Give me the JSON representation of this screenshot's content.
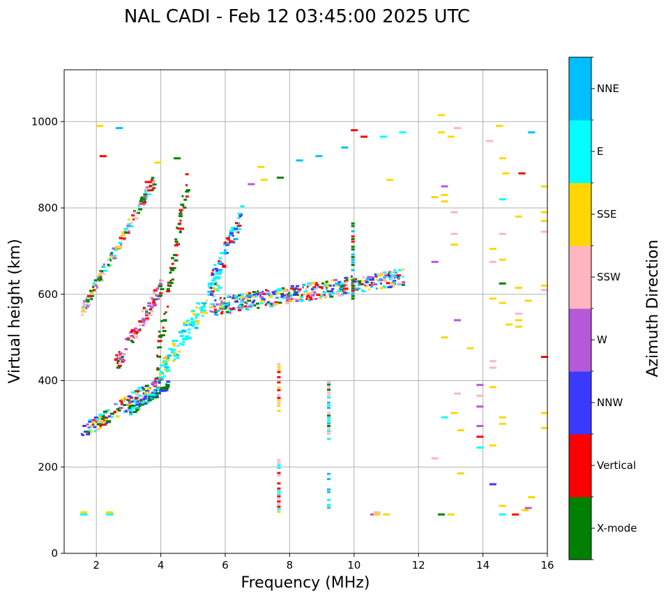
{
  "chart_data": {
    "type": "scatter",
    "title": "NAL CADI - Feb 12 03:45:00 2025 UTC",
    "xlabel": "Frequency (MHz)",
    "ylabel": "Virtual height (km)",
    "xlim": [
      1,
      16
    ],
    "ylim": [
      0,
      1120
    ],
    "xticks": [
      2,
      4,
      6,
      8,
      10,
      12,
      14,
      16
    ],
    "yticks": [
      0,
      200,
      400,
      600,
      800,
      1000
    ],
    "grid": true,
    "colorbar": {
      "label": "Azimuth Direction",
      "position": "right",
      "categories": [
        "X-mode",
        "Vertical",
        "NNW",
        "W",
        "SSW",
        "SSE",
        "E",
        "NNE"
      ],
      "colors": [
        "#008000",
        "#ff0000",
        "#3a3aff",
        "#b45ad6",
        "#ffb6c1",
        "#ffd700",
        "#00ffff",
        "#00bfff"
      ]
    },
    "trace_segments": [
      {
        "name": "low O-trace",
        "f": [
          1.5,
          4.0
        ],
        "h": [
          280,
          400
        ],
        "spread": 35,
        "mix": [
          "Vertical",
          "SSW",
          "NNW",
          "W",
          "X-mode",
          "E",
          "SSE"
        ]
      },
      {
        "name": "X-mode lower",
        "f": [
          3.0,
          4.2
        ],
        "h": [
          330,
          390
        ],
        "spread": 20,
        "mix": [
          "X-mode",
          "NNW",
          "E"
        ]
      },
      {
        "name": "steep trace",
        "f": [
          2.5,
          4.0
        ],
        "h": [
          430,
          620
        ],
        "spread": 40,
        "mix": [
          "Vertical",
          "X-mode",
          "SSW",
          "W"
        ]
      },
      {
        "name": "E-spread cloud",
        "f": [
          3.8,
          5.8
        ],
        "h": [
          400,
          640
        ],
        "spread": 55,
        "mix": [
          "E",
          "E",
          "E",
          "NNE",
          "SSE"
        ]
      },
      {
        "name": "X-mode column",
        "f": [
          3.8,
          4.8
        ],
        "h": [
          430,
          870
        ],
        "spread": 60,
        "mix": [
          "X-mode",
          "X-mode",
          "Vertical"
        ]
      },
      {
        "name": "high trace",
        "f": [
          1.5,
          3.8
        ],
        "h": [
          560,
          870
        ],
        "spread": 30,
        "mix": [
          "Vertical",
          "SSE",
          "E",
          "X-mode",
          "W",
          "SSW"
        ]
      },
      {
        "name": "plateau",
        "f": [
          5.5,
          11.5
        ],
        "h": [
          570,
          640
        ],
        "spread": 40,
        "mix": [
          "NNW",
          "W",
          "E",
          "NNE",
          "Vertical",
          "SSW",
          "SSE",
          "X-mode"
        ]
      },
      {
        "name": "upper cusp",
        "f": [
          5.5,
          6.5
        ],
        "h": [
          620,
          790
        ],
        "spread": 50,
        "mix": [
          "E",
          "NNE",
          "NNW",
          "Vertical"
        ]
      }
    ],
    "scattered_echoes": [
      {
        "f": 2.0,
        "h": 990,
        "az": "SSE"
      },
      {
        "f": 2.1,
        "h": 920,
        "az": "Vertical"
      },
      {
        "f": 2.6,
        "h": 985,
        "az": "NNE"
      },
      {
        "f": 3.5,
        "h": 860,
        "az": "Vertical"
      },
      {
        "f": 3.8,
        "h": 905,
        "az": "SSE"
      },
      {
        "f": 4.4,
        "h": 915,
        "az": "X-mode"
      },
      {
        "f": 6.7,
        "h": 855,
        "az": "W"
      },
      {
        "f": 7.0,
        "h": 895,
        "az": "SSE"
      },
      {
        "f": 7.1,
        "h": 865,
        "az": "SSE"
      },
      {
        "f": 7.6,
        "h": 870,
        "az": "X-mode"
      },
      {
        "f": 8.2,
        "h": 910,
        "az": "NNE"
      },
      {
        "f": 8.8,
        "h": 920,
        "az": "NNE"
      },
      {
        "f": 9.6,
        "h": 940,
        "az": "NNE"
      },
      {
        "f": 9.9,
        "h": 980,
        "az": "Vertical"
      },
      {
        "f": 10.2,
        "h": 965,
        "az": "Vertical"
      },
      {
        "f": 10.8,
        "h": 965,
        "az": "E"
      },
      {
        "f": 11.0,
        "h": 865,
        "az": "SSE"
      },
      {
        "f": 11.4,
        "h": 975,
        "az": "E"
      },
      {
        "f": 12.6,
        "h": 1015,
        "az": "SSE"
      },
      {
        "f": 12.6,
        "h": 975,
        "az": "SSE"
      },
      {
        "f": 12.9,
        "h": 965,
        "az": "SSE"
      },
      {
        "f": 13.1,
        "h": 985,
        "az": "SSW"
      },
      {
        "f": 14.1,
        "h": 955,
        "az": "SSW"
      },
      {
        "f": 14.4,
        "h": 990,
        "az": "SSE"
      },
      {
        "f": 14.5,
        "h": 915,
        "az": "SSE"
      },
      {
        "f": 14.6,
        "h": 880,
        "az": "SSE"
      },
      {
        "f": 15.1,
        "h": 880,
        "az": "Vertical"
      },
      {
        "f": 15.4,
        "h": 975,
        "az": "NNE"
      },
      {
        "f": 15.8,
        "h": 850,
        "az": "SSE"
      },
      {
        "f": 15.8,
        "h": 790,
        "az": "SSE"
      },
      {
        "f": 15.8,
        "h": 770,
        "az": "SSE"
      },
      {
        "f": 15.8,
        "h": 745,
        "az": "SSW"
      },
      {
        "f": 15.8,
        "h": 620,
        "az": "SSE"
      },
      {
        "f": 15.8,
        "h": 610,
        "az": "SSW"
      },
      {
        "f": 15.8,
        "h": 455,
        "az": "Vertical"
      },
      {
        "f": 15.8,
        "h": 325,
        "az": "SSE"
      },
      {
        "f": 15.8,
        "h": 290,
        "az": "SSE"
      },
      {
        "f": 15.3,
        "h": 585,
        "az": "SSE"
      },
      {
        "f": 15.0,
        "h": 780,
        "az": "SSE"
      },
      {
        "f": 15.0,
        "h": 615,
        "az": "SSE"
      },
      {
        "f": 15.0,
        "h": 555,
        "az": "SSW"
      },
      {
        "f": 15.0,
        "h": 540,
        "az": "SSE"
      },
      {
        "f": 15.0,
        "h": 525,
        "az": "SSE"
      },
      {
        "f": 14.7,
        "h": 530,
        "az": "SSE"
      },
      {
        "f": 14.5,
        "h": 820,
        "az": "E"
      },
      {
        "f": 14.5,
        "h": 740,
        "az": "SSW"
      },
      {
        "f": 14.5,
        "h": 680,
        "az": "SSE"
      },
      {
        "f": 14.5,
        "h": 625,
        "az": "X-mode"
      },
      {
        "f": 14.5,
        "h": 580,
        "az": "SSE"
      },
      {
        "f": 14.2,
        "h": 705,
        "az": "SSE"
      },
      {
        "f": 14.2,
        "h": 675,
        "az": "SSW"
      },
      {
        "f": 14.2,
        "h": 590,
        "az": "SSE"
      },
      {
        "f": 14.2,
        "h": 445,
        "az": "SSW"
      },
      {
        "f": 14.2,
        "h": 430,
        "az": "SSW"
      },
      {
        "f": 14.2,
        "h": 385,
        "az": "SSE"
      },
      {
        "f": 14.5,
        "h": 315,
        "az": "SSE"
      },
      {
        "f": 14.5,
        "h": 300,
        "az": "SSE"
      },
      {
        "f": 14.2,
        "h": 250,
        "az": "SSE"
      },
      {
        "f": 14.2,
        "h": 160,
        "az": "NNW"
      },
      {
        "f": 14.5,
        "h": 110,
        "az": "SSE"
      },
      {
        "f": 14.5,
        "h": 90,
        "az": "E"
      },
      {
        "f": 14.9,
        "h": 90,
        "az": "Vertical"
      },
      {
        "f": 15.2,
        "h": 100,
        "az": "SSE"
      },
      {
        "f": 15.4,
        "h": 130,
        "az": "SSE"
      },
      {
        "f": 15.3,
        "h": 105,
        "az": "W"
      },
      {
        "f": 13.8,
        "h": 390,
        "az": "W"
      },
      {
        "f": 13.8,
        "h": 365,
        "az": "SSW"
      },
      {
        "f": 13.8,
        "h": 340,
        "az": "W"
      },
      {
        "f": 13.8,
        "h": 295,
        "az": "W"
      },
      {
        "f": 13.8,
        "h": 270,
        "az": "Vertical"
      },
      {
        "f": 13.8,
        "h": 245,
        "az": "E"
      },
      {
        "f": 13.5,
        "h": 475,
        "az": "SSE"
      },
      {
        "f": 13.0,
        "h": 740,
        "az": "SSW"
      },
      {
        "f": 13.0,
        "h": 715,
        "az": "SSE"
      },
      {
        "f": 13.0,
        "h": 790,
        "az": "SSW"
      },
      {
        "f": 13.1,
        "h": 540,
        "az": "W"
      },
      {
        "f": 13.1,
        "h": 370,
        "az": "SSW"
      },
      {
        "f": 12.7,
        "h": 850,
        "az": "W"
      },
      {
        "f": 12.7,
        "h": 830,
        "az": "SSE"
      },
      {
        "f": 12.4,
        "h": 825,
        "az": "SSE"
      },
      {
        "f": 12.7,
        "h": 815,
        "az": "SSE"
      },
      {
        "f": 12.4,
        "h": 675,
        "az": "W"
      },
      {
        "f": 12.7,
        "h": 500,
        "az": "SSE"
      },
      {
        "f": 12.7,
        "h": 315,
        "az": "E"
      },
      {
        "f": 13.0,
        "h": 325,
        "az": "SSE"
      },
      {
        "f": 13.2,
        "h": 285,
        "az": "SSE"
      },
      {
        "f": 12.4,
        "h": 220,
        "az": "SSW"
      },
      {
        "f": 13.2,
        "h": 185,
        "az": "SSE"
      },
      {
        "f": 12.6,
        "h": 90,
        "az": "X-mode"
      },
      {
        "f": 12.9,
        "h": 90,
        "az": "SSE"
      },
      {
        "f": 10.5,
        "h": 90,
        "az": "W"
      },
      {
        "f": 10.6,
        "h": 95,
        "az": "SSW"
      },
      {
        "f": 10.6,
        "h": 90,
        "az": "SSE"
      },
      {
        "f": 10.9,
        "h": 90,
        "az": "SSE"
      },
      {
        "f": 1.5,
        "h": 95,
        "az": "SSE"
      },
      {
        "f": 1.5,
        "h": 90,
        "az": "E"
      },
      {
        "f": 2.3,
        "h": 90,
        "az": "E"
      },
      {
        "f": 2.3,
        "h": 95,
        "az": "SSE"
      }
    ],
    "vertical_streaks": [
      {
        "f": 7.65,
        "h": [
          330,
          440
        ],
        "mix": [
          "Vertical",
          "SSW",
          "SSE"
        ]
      },
      {
        "f": 7.65,
        "h": [
          90,
          225
        ],
        "mix": [
          "Vertical",
          "SSW",
          "E",
          "SSE"
        ]
      },
      {
        "f": 9.2,
        "h": [
          265,
          400
        ],
        "mix": [
          "E",
          "X-mode",
          "SSW",
          "NNE"
        ]
      },
      {
        "f": 9.2,
        "h": [
          100,
          190
        ],
        "mix": [
          "E",
          "NNE"
        ]
      },
      {
        "f": 9.95,
        "h": [
          590,
          765
        ],
        "mix": [
          "X-mode",
          "Vertical",
          "NNE"
        ]
      }
    ]
  }
}
